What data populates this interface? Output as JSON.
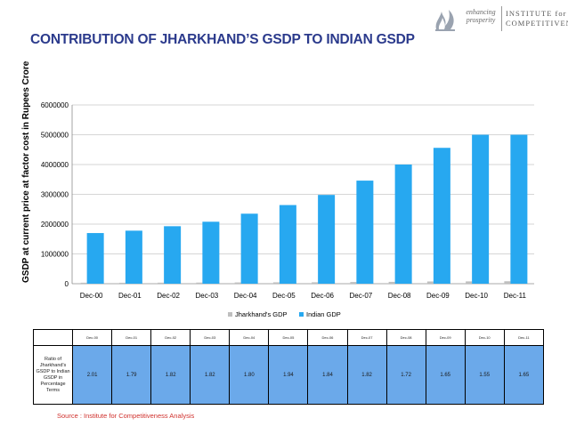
{
  "slide": {
    "title": "CONTRIBUTION OF JHARKHAND’S GSDP TO INDIAN GSDP",
    "source": "Source : Institute for Competitiveness Analysis",
    "logo": {
      "tagline_line1": "enhancing",
      "tagline_line2": "prosperity",
      "name_line1": "INSTITUTE for",
      "name_line2": "COMPETITIVENESS"
    }
  },
  "chart_data": {
    "type": "bar",
    "title": "",
    "ylabel": "GSDP at current price at factor cost in Rupees Crore",
    "xlabel": "",
    "categories": [
      "Dec-00",
      "Dec-01",
      "Dec-02",
      "Dec-03",
      "Dec-04",
      "Dec-05",
      "Dec-06",
      "Dec-07",
      "Dec-08",
      "Dec-09",
      "Dec-10",
      "Dec-11"
    ],
    "ylim": [
      0,
      6000000
    ],
    "yticks": [
      0,
      1000000,
      2000000,
      3000000,
      4000000,
      5000000,
      6000000
    ],
    "ytick_labels": [
      "0",
      "1000000",
      "2000000",
      "3000000",
      "4000000",
      "5000000",
      "6000000"
    ],
    "grid": true,
    "legend_position": "bottom",
    "series": [
      {
        "name": "Jharkhand's GDP",
        "color": "#bfbfbf",
        "values": [
          34000,
          32000,
          35000,
          38000,
          42000,
          46000,
          48000,
          56000,
          62000,
          75000,
          78000,
          82000
        ]
      },
      {
        "name": "Indian GDP",
        "color": "#27a8f0",
        "values": [
          1700000,
          1780000,
          1930000,
          2080000,
          2350000,
          2640000,
          2980000,
          3460000,
          4000000,
          4560000,
          5000000,
          5000000
        ]
      }
    ]
  },
  "ratio_table": {
    "row_label": "Ratio of Jharkhand's GSDP to Indian GSDP in Percentage Terms",
    "headers": [
      "Dec-00",
      "Dec-01",
      "Dec-02",
      "Dec-03",
      "Dec-04",
      "Dec-05",
      "Dec-06",
      "Dec-07",
      "Dec-08",
      "Dec-09",
      "Dec-10",
      "Dec-11"
    ],
    "values": [
      "2.01",
      "1.79",
      "1.82",
      "1.82",
      "1.80",
      "1.94",
      "1.84",
      "1.82",
      "1.72",
      "1.65",
      "1.55",
      "1.65"
    ]
  }
}
